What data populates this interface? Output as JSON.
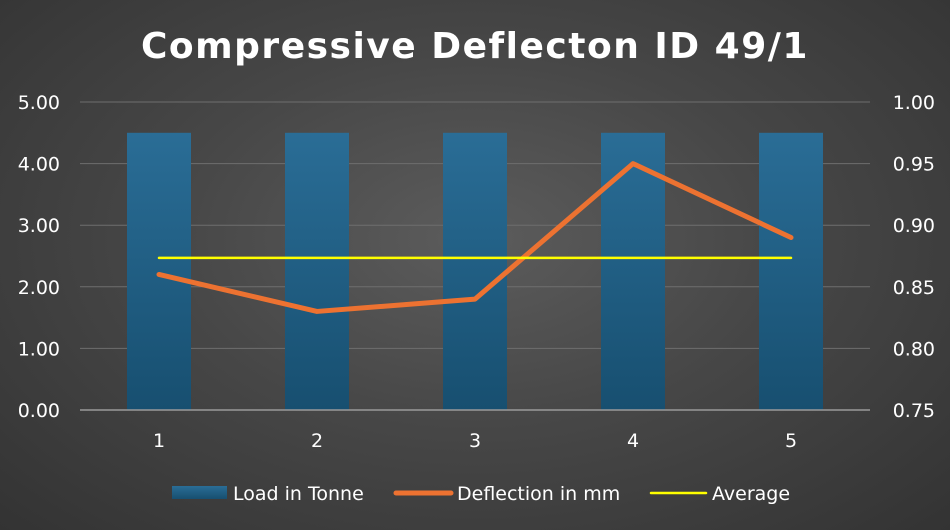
{
  "chart_data": {
    "type": "bar",
    "title": "Compressive Deflecton ID 49/1",
    "categories": [
      "1",
      "2",
      "3",
      "4",
      "5"
    ],
    "series": [
      {
        "name": "Load in Tonne",
        "type": "bar",
        "axis": "left",
        "color": "#1f5f85",
        "values": [
          4.5,
          4.5,
          4.5,
          4.5,
          4.5
        ]
      },
      {
        "name": "Deflection in mm",
        "type": "line",
        "axis": "right",
        "color": "#ed7231",
        "values": [
          0.86,
          0.83,
          0.84,
          0.95,
          0.89
        ]
      },
      {
        "name": "Average",
        "type": "line",
        "axis": "left",
        "color": "#ffff00",
        "values": [
          2.47,
          2.47,
          2.47,
          2.47,
          2.47
        ]
      }
    ],
    "y_left": {
      "ylim": [
        0,
        5
      ],
      "ticks": [
        "0.00",
        "1.00",
        "2.00",
        "3.00",
        "4.00",
        "5.00"
      ]
    },
    "y_right": {
      "ylim": [
        0.75,
        1.0
      ],
      "ticks": [
        "0.75",
        "0.80",
        "0.85",
        "0.90",
        "0.95",
        "1.00"
      ]
    },
    "xlabel": "",
    "ylabel": "",
    "grid": true,
    "legend_position": "bottom"
  }
}
